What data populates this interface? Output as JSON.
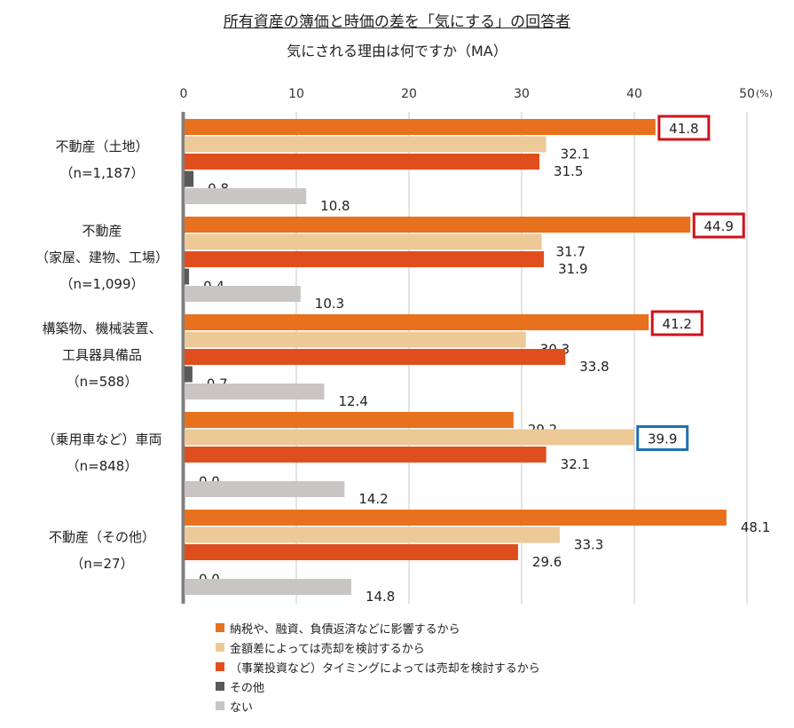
{
  "chart_data": {
    "type": "bar",
    "orientation": "horizontal",
    "title": "所有資産の簿価と時価の差を「気にする」の回答者",
    "subtitle": "気にされる理由は何ですか（MA）",
    "xlim": [
      0,
      50
    ],
    "x_ticks": [
      "0",
      "10",
      "20",
      "30",
      "40",
      "50"
    ],
    "x_unit": "(%)",
    "grid": "vertical",
    "legend_position": "bottom-left",
    "categories": [
      {
        "lines": [
          "不動産（土地）",
          "（n=1,187）"
        ]
      },
      {
        "lines": [
          "不動産",
          "（家屋、建物、工場）",
          "（n=1,099）"
        ]
      },
      {
        "lines": [
          "構築物、機械装置、",
          "工具器具備品",
          "（n=588）"
        ]
      },
      {
        "lines": [
          "（乗用車など）車両",
          "（n=848）"
        ]
      },
      {
        "lines": [
          "不動産（その他）",
          "（n=27）"
        ]
      }
    ],
    "series": [
      {
        "name": "納税や、融資、負債返済などに影響するから",
        "color": "#E8711D",
        "values": [
          41.8,
          44.9,
          41.2,
          29.2,
          48.1
        ],
        "labels": [
          "41.8",
          "44.9",
          "41.2",
          "29.2",
          "48.1"
        ]
      },
      {
        "name": "金額差によっては売却を検討するから",
        "color": "#EDC998",
        "values": [
          32.1,
          31.7,
          30.3,
          39.9,
          33.3
        ],
        "labels": [
          "32.1",
          "31.7",
          "30.3",
          "39.9",
          "33.3"
        ]
      },
      {
        "name": "（事業投資など）タイミングによっては売却を検討するから",
        "color": "#E14E1E",
        "values": [
          31.5,
          31.9,
          33.8,
          32.1,
          29.6
        ],
        "labels": [
          "31.5",
          "31.9",
          "33.8",
          "32.1",
          "29.6"
        ]
      },
      {
        "name": "その他",
        "color": "#595959",
        "values": [
          0.8,
          0.4,
          0.7,
          0.0,
          0.0
        ],
        "labels": [
          "0.8",
          "0.4",
          "0.7",
          "0.0",
          "0.0"
        ]
      },
      {
        "name": "ない",
        "color": "#C9C5C4",
        "values": [
          10.8,
          10.3,
          12.4,
          14.2,
          14.8
        ],
        "labels": [
          "10.8",
          "10.3",
          "12.4",
          "14.2",
          "14.8"
        ]
      }
    ],
    "highlights": [
      {
        "category": 0,
        "series": 0,
        "color": "#D0121B"
      },
      {
        "category": 1,
        "series": 0,
        "color": "#D0121B"
      },
      {
        "category": 2,
        "series": 0,
        "color": "#D0121B"
      },
      {
        "category": 3,
        "series": 1,
        "color": "#1F6FB0"
      }
    ]
  }
}
